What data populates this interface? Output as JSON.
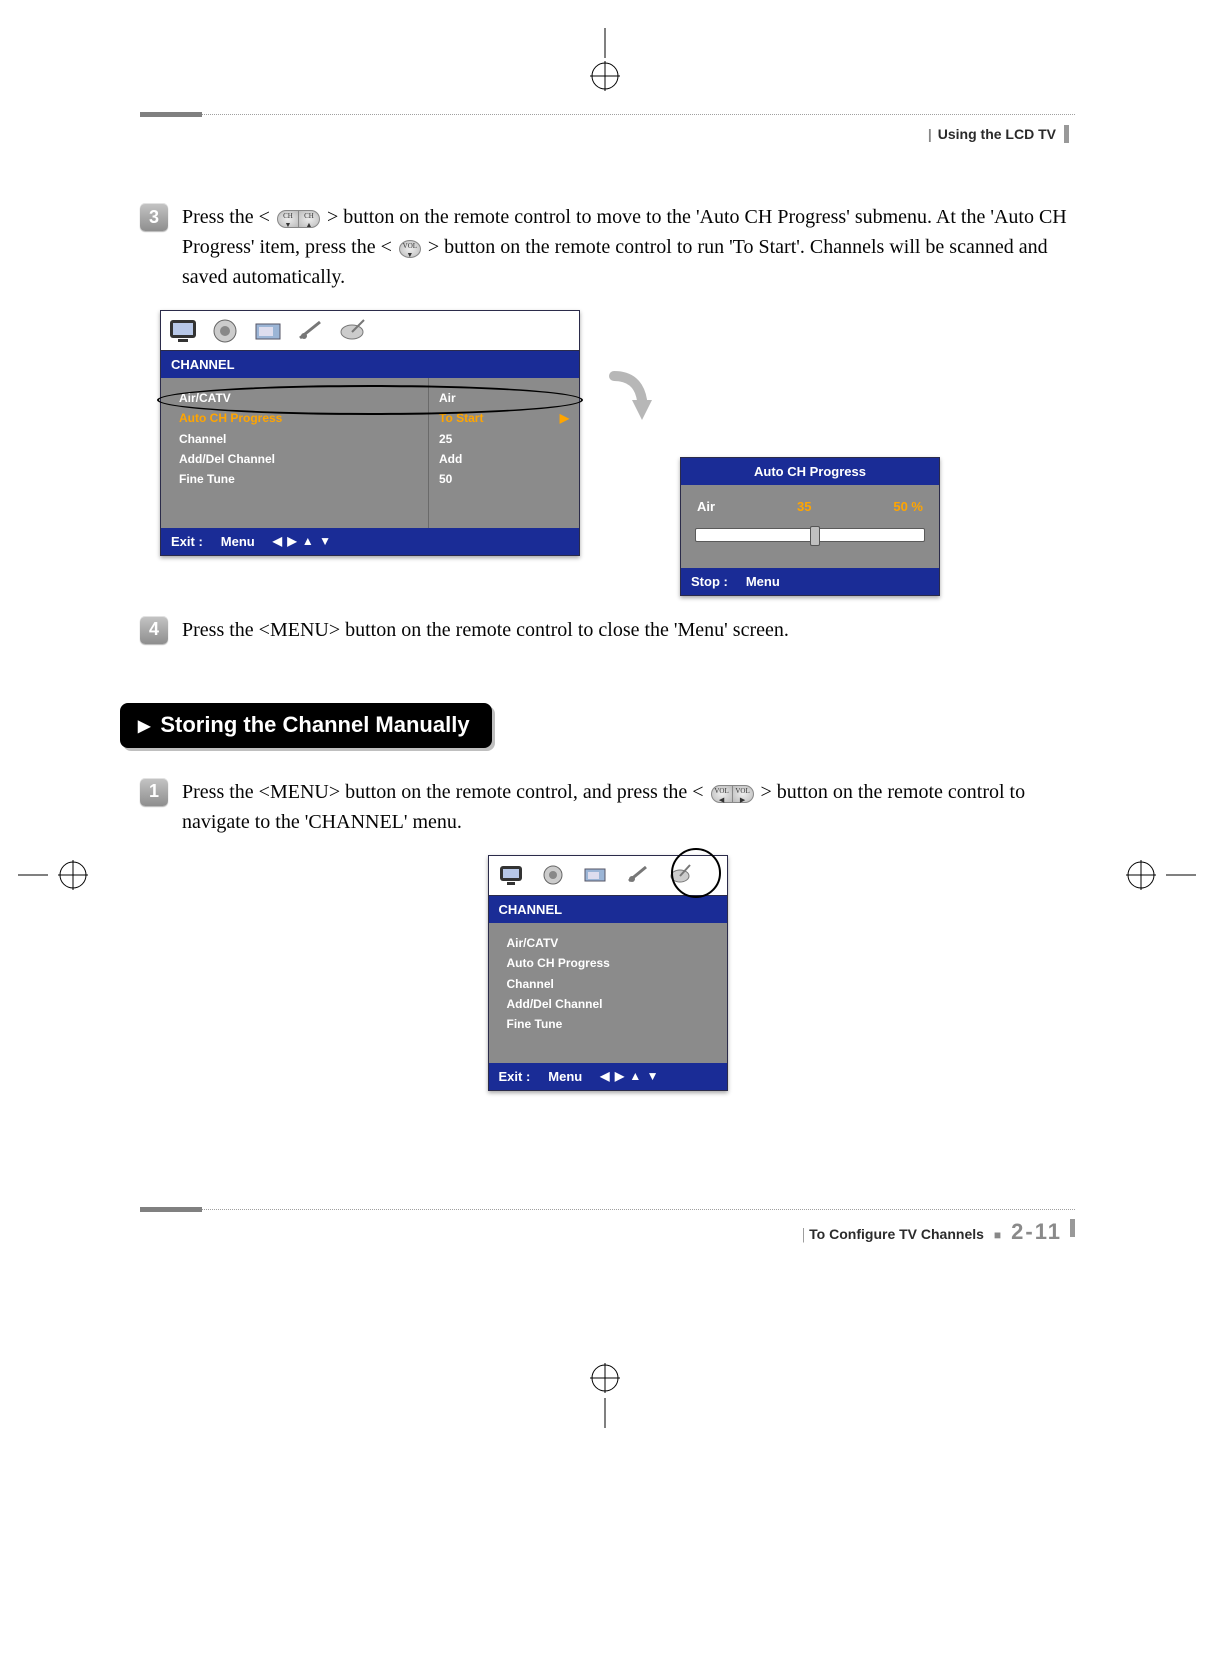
{
  "header": {
    "section_label": "Using the LCD TV"
  },
  "steps": {
    "s3": {
      "num": "3",
      "text_a": "Press the <",
      "text_b": "> button on the remote control to move to the 'Auto CH Progress' submenu. At the 'Auto CH Progress' item, press the <",
      "text_c": "> button on the remote control to run 'To Start'. Channels will be scanned and saved automatically."
    },
    "s4": {
      "num": "4",
      "text": "Press the <MENU> button on the remote control to close the 'Menu' screen."
    },
    "s1b": {
      "num": "1",
      "text_a": "Press the <MENU> button on the remote control, and press the <",
      "text_b": "> button on the remote control to navigate to the 'CHANNEL' menu."
    }
  },
  "osd1": {
    "title": "CHANNEL",
    "rows": [
      {
        "label": "Air/CATV",
        "value": "Air",
        "selected": false
      },
      {
        "label": "Auto CH Progress",
        "value": "To Start",
        "selected": true
      },
      {
        "label": "Channel",
        "value": "25",
        "selected": false
      },
      {
        "label": "Add/Del Channel",
        "value": "Add",
        "selected": false
      },
      {
        "label": "Fine Tune",
        "value": "50",
        "selected": false
      }
    ],
    "footer_exit": "Exit :",
    "footer_menu": "Menu",
    "footer_arrows": "◀ ▶ ▲ ▼"
  },
  "osd_progress": {
    "title": "Auto CH Progress",
    "label": "Air",
    "channel": "35",
    "percent": "50 %",
    "thumb_pct": 50,
    "footer_stop": "Stop :",
    "footer_menu": "Menu"
  },
  "osd2": {
    "title": "CHANNEL",
    "rows": [
      "Air/CATV",
      "Auto CH Progress",
      "Channel",
      "Add/Del Channel",
      "Fine Tune"
    ],
    "footer_exit": "Exit :",
    "footer_menu": "Menu",
    "footer_arrows": "◀ ▶ ▲ ▼"
  },
  "section2": {
    "title": "Storing the Channel Manually"
  },
  "footer": {
    "label": "To Configure TV Channels",
    "page": "2-11"
  },
  "colors": {
    "blue": "#1a2c96",
    "orange": "#ffa500",
    "osd_bg": "#8b8b8b"
  }
}
